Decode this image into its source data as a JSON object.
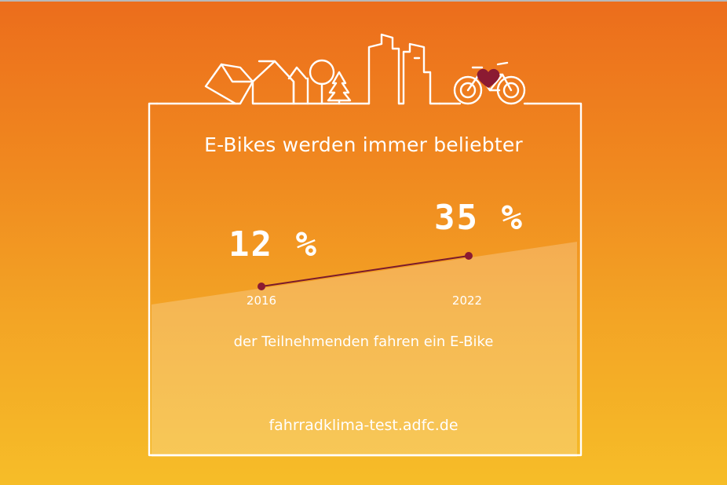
{
  "title": "E-Bikes werden immer beliebter",
  "caption": "der Teilnehmenden fahren ein E-Bike",
  "footer_url": "fahrradklima-test.adfc.de",
  "colors": {
    "frame": "#ffffff",
    "line": "#7a1a2c",
    "heart": "#8b1a32",
    "gradient_top": "#ec6d1c",
    "gradient_bottom": "#f6bd28"
  },
  "icons": [
    "city-skyline-icon",
    "tree-icon",
    "bicycle-icon",
    "heart-icon"
  ],
  "chart_data": {
    "type": "line",
    "title": "E-Bikes werden immer beliebter",
    "xlabel": "",
    "ylabel": "",
    "x": [
      "2016",
      "2022"
    ],
    "series": [
      {
        "values": [
          12,
          35
        ],
        "labels": [
          "12 %",
          "35 %"
        ]
      }
    ],
    "grid": false
  }
}
